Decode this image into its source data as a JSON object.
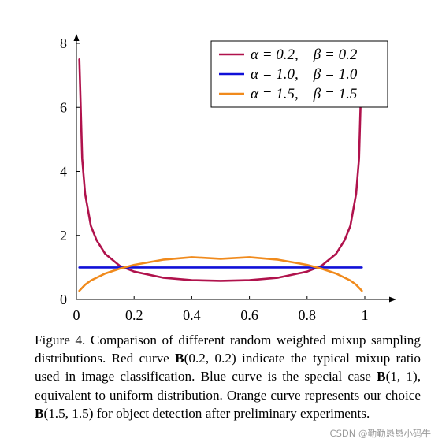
{
  "chart_data": {
    "type": "line",
    "title": "",
    "xlabel": "",
    "ylabel": "",
    "xlim": [
      0,
      1
    ],
    "ylim": [
      0,
      8
    ],
    "xticks": [
      "0",
      "0.2",
      "0.4",
      "0.6",
      "0.8",
      "1"
    ],
    "yticks": [
      "0",
      "2",
      "4",
      "6",
      "8"
    ],
    "grid": false,
    "legend_position": "top-right",
    "series": [
      {
        "name": "α = 0.2,    β = 0.2",
        "color": "#b0124c",
        "x": [
          0.01,
          0.02,
          0.03,
          0.05,
          0.07,
          0.1,
          0.15,
          0.2,
          0.3,
          0.4,
          0.5,
          0.6,
          0.7,
          0.8,
          0.85,
          0.9,
          0.93,
          0.95,
          0.97,
          0.98,
          0.99
        ],
        "y": [
          7.5,
          4.4,
          3.3,
          2.3,
          1.85,
          1.42,
          1.05,
          0.87,
          0.68,
          0.6,
          0.58,
          0.6,
          0.68,
          0.87,
          1.05,
          1.42,
          1.85,
          2.3,
          3.3,
          4.4,
          7.5
        ]
      },
      {
        "name": "α = 1.0,    β = 1.0",
        "color": "#1010d8",
        "x": [
          0.01,
          0.99
        ],
        "y": [
          1,
          1
        ]
      },
      {
        "name": "α = 1.5,    β = 1.5",
        "color": "#f08a1c",
        "x": [
          0.01,
          0.03,
          0.05,
          0.1,
          0.15,
          0.2,
          0.3,
          0.4,
          0.5,
          0.6,
          0.7,
          0.8,
          0.85,
          0.9,
          0.95,
          0.97,
          0.99
        ],
        "y": [
          0.27,
          0.46,
          0.59,
          0.81,
          0.96,
          1.08,
          1.24,
          1.32,
          1.27,
          1.32,
          1.24,
          1.08,
          0.96,
          0.81,
          0.59,
          0.46,
          0.27
        ]
      }
    ]
  },
  "caption": {
    "label": "Figure 4.",
    "text_1": "Comparison of different random weighted mixup sampling distributions.  Red curve",
    "b_1": "B",
    "args_1": "(0.2, 0.2)",
    "text_2": "indicate the typical mixup ratio used in image classification. Blue curve is the special case",
    "b_2": "B",
    "args_2": "(1, 1)",
    "text_3": ", equivalent to uniform distribution.  Orange curve represents our choice",
    "b_3": "B",
    "args_3": "(1.5, 1.5)",
    "text_4": "for object detection after preliminary experiments."
  },
  "watermark": "CSDN @勤勤恳恳小码牛"
}
